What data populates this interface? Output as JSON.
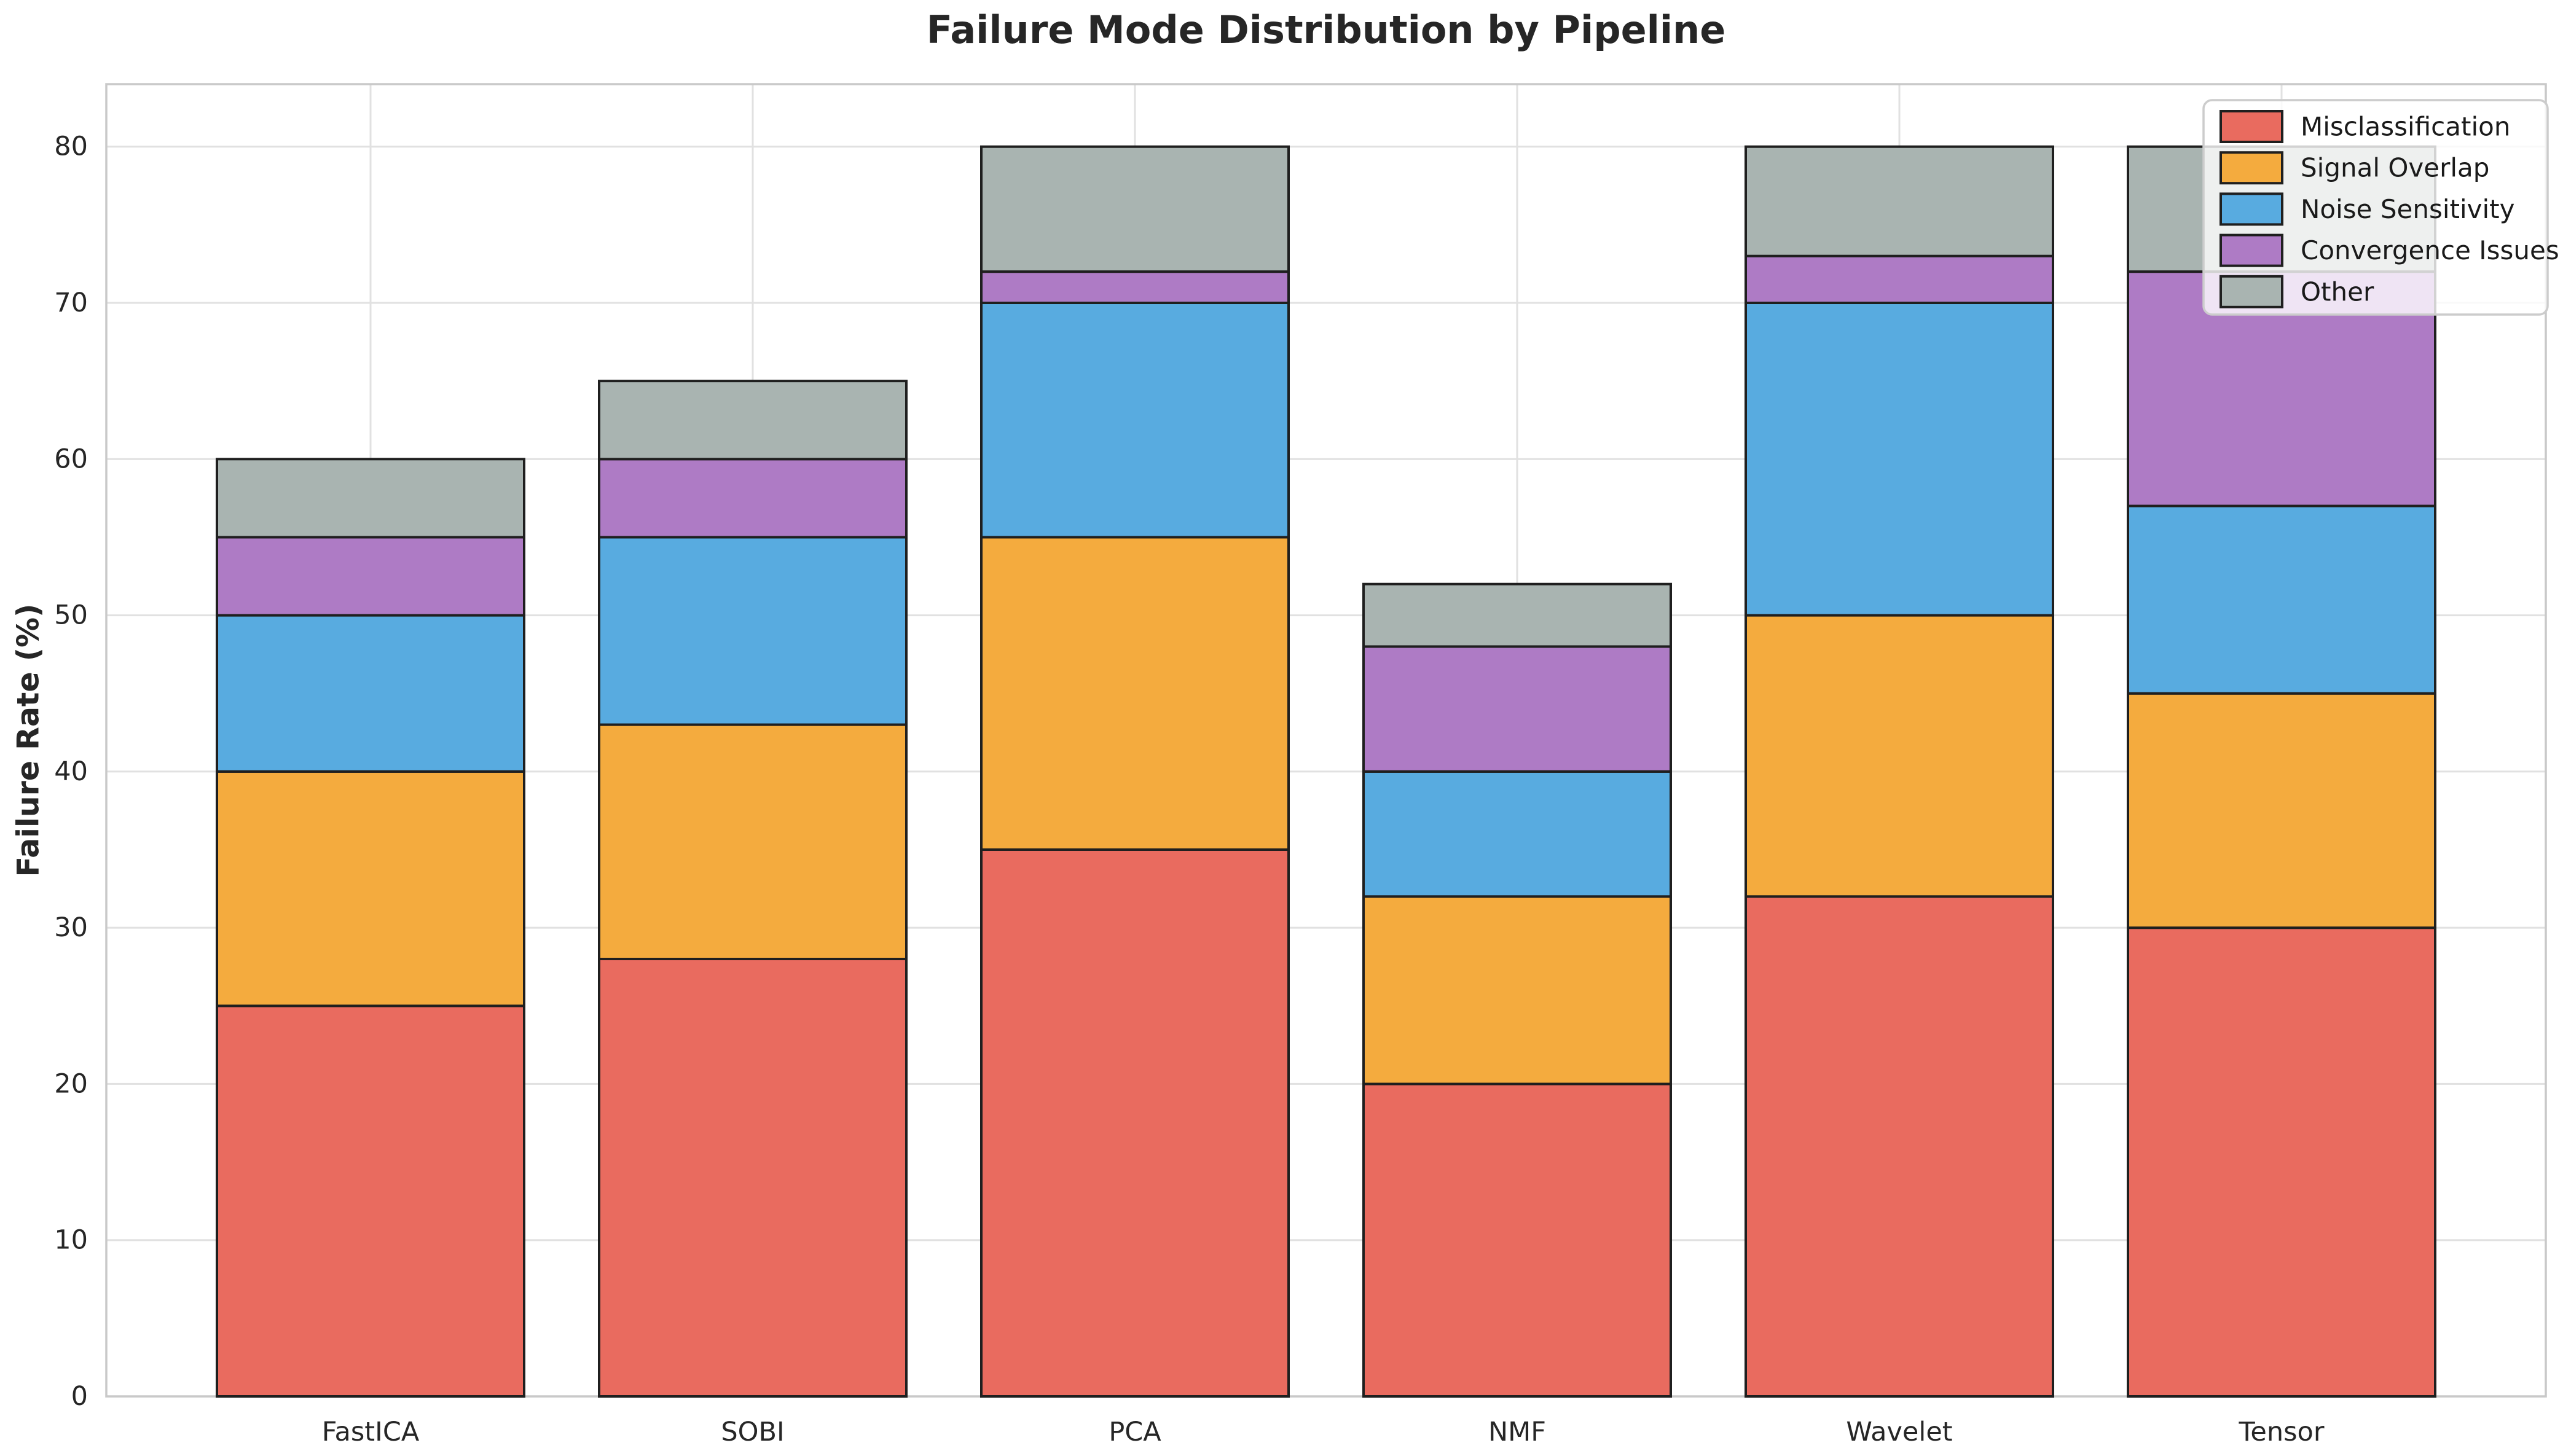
{
  "chart_data": {
    "type": "bar",
    "stacked": true,
    "title": "Failure Mode Distribution by Pipeline",
    "xlabel": "",
    "ylabel": "Failure Rate (%)",
    "categories": [
      "FastICA",
      "SOBI",
      "PCA",
      "NMF",
      "Wavelet",
      "Tensor"
    ],
    "series": [
      {
        "name": "Misclassification",
        "color": "#E96B5F",
        "values": [
          25,
          28,
          35,
          20,
          32,
          30
        ]
      },
      {
        "name": "Signal Overlap",
        "color": "#F4AB3E",
        "values": [
          15,
          15,
          20,
          12,
          18,
          15
        ]
      },
      {
        "name": "Noise Sensitivity",
        "color": "#58ABE0",
        "values": [
          10,
          12,
          15,
          8,
          20,
          12
        ]
      },
      {
        "name": "Convergence Issues",
        "color": "#AE7BC5",
        "values": [
          5,
          5,
          2,
          8,
          3,
          15
        ]
      },
      {
        "name": "Other",
        "color": "#A9B4B1",
        "values": [
          5,
          5,
          8,
          4,
          7,
          8
        ]
      }
    ],
    "stack_totals": [
      60,
      65,
      80,
      52,
      80,
      80
    ],
    "ylim": [
      0,
      84
    ],
    "yticks": [
      0,
      10,
      20,
      30,
      40,
      50,
      60,
      70,
      80
    ],
    "grid": true,
    "legend_position": "upper right"
  },
  "style": {
    "bar_edge_color": "#1f1f1f",
    "grid_color": "#e1e1e1",
    "spine_color": "#c9c9c9",
    "text_color": "#262626",
    "legend_background": "#ffffff",
    "legend_background_opacity": "0.8",
    "legend_border_color": "#cccccc"
  }
}
